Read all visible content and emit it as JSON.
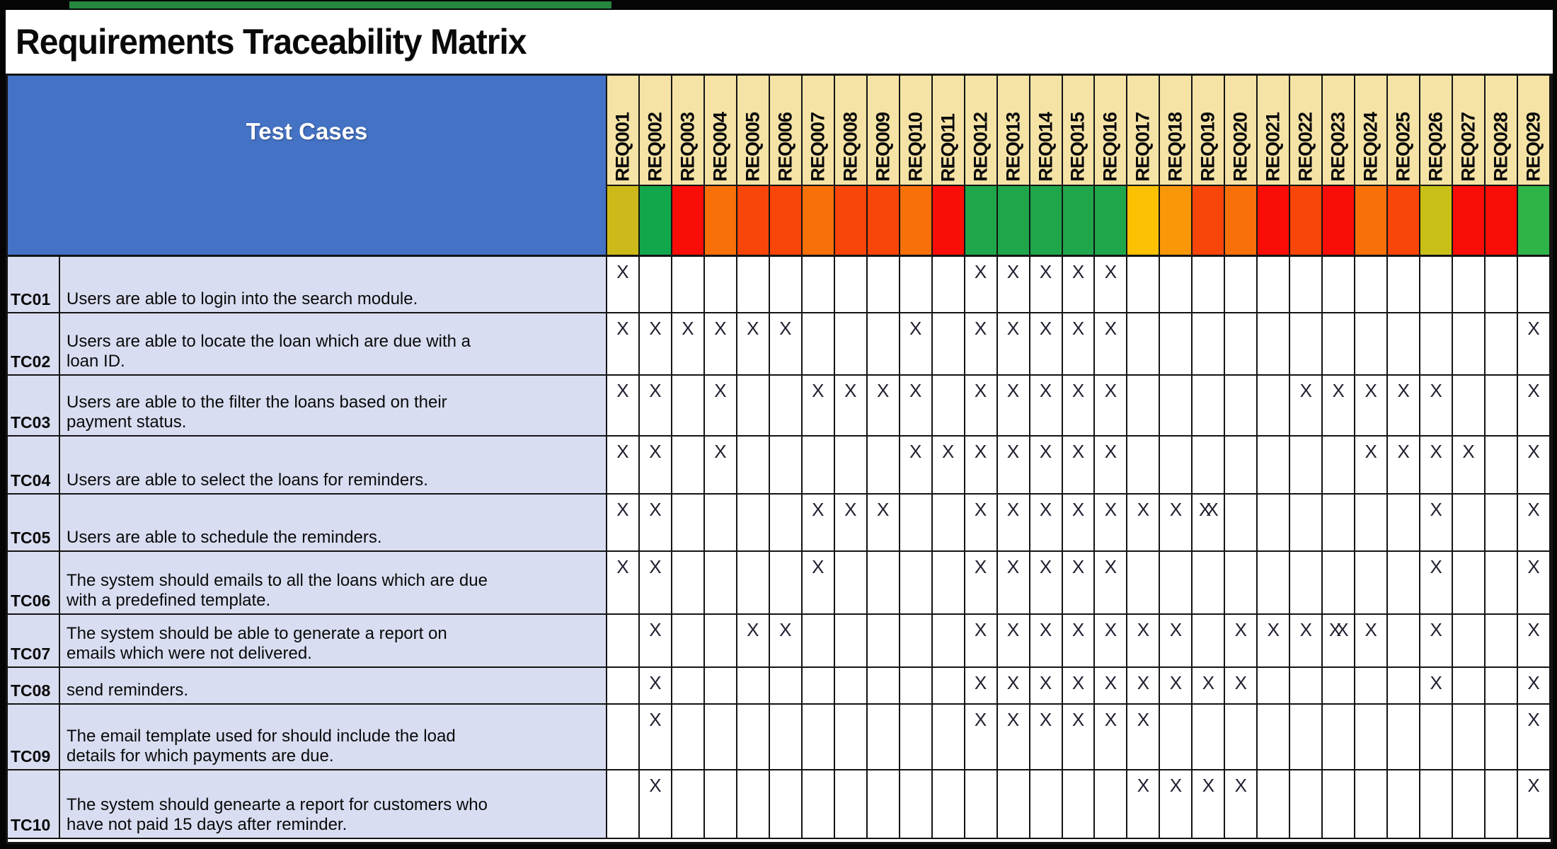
{
  "page": {
    "title": "Requirements Traceability Matrix",
    "top_strip_color": "#26873E"
  },
  "header": {
    "test_cases_label": "Test Cases",
    "blue_bg": "#4472C4",
    "label_bg": "#F5E3A6",
    "requirements": [
      {
        "id": "REQ001",
        "status_color": "#CDB91A"
      },
      {
        "id": "REQ002",
        "status_color": "#12A74C"
      },
      {
        "id": "REQ003",
        "status_color": "#F90D06"
      },
      {
        "id": "REQ004",
        "status_color": "#F8700A"
      },
      {
        "id": "REQ005",
        "status_color": "#F84509"
      },
      {
        "id": "REQ006",
        "status_color": "#F84509"
      },
      {
        "id": "REQ007",
        "status_color": "#F8700A"
      },
      {
        "id": "REQ008",
        "status_color": "#F84509"
      },
      {
        "id": "REQ009",
        "status_color": "#F84509"
      },
      {
        "id": "REQ010",
        "status_color": "#F8700A"
      },
      {
        "id": "REQ011",
        "status_color": "#F90D06"
      },
      {
        "id": "REQ012",
        "status_color": "#1FA64B"
      },
      {
        "id": "REQ013",
        "status_color": "#1FA64B"
      },
      {
        "id": "REQ014",
        "status_color": "#1FA64B"
      },
      {
        "id": "REQ015",
        "status_color": "#1FA64B"
      },
      {
        "id": "REQ016",
        "status_color": "#1FA64B"
      },
      {
        "id": "REQ017",
        "status_color": "#FBC102"
      },
      {
        "id": "REQ018",
        "status_color": "#F99708"
      },
      {
        "id": "REQ019",
        "status_color": "#F84509"
      },
      {
        "id": "REQ020",
        "status_color": "#F8700A"
      },
      {
        "id": "REQ021",
        "status_color": "#F90D06"
      },
      {
        "id": "REQ022",
        "status_color": "#F84509"
      },
      {
        "id": "REQ023",
        "status_color": "#F90D06"
      },
      {
        "id": "REQ024",
        "status_color": "#F8700A"
      },
      {
        "id": "REQ025",
        "status_color": "#F84509"
      },
      {
        "id": "REQ026",
        "status_color": "#C9C017"
      },
      {
        "id": "REQ027",
        "status_color": "#F90D06"
      },
      {
        "id": "REQ028",
        "status_color": "#F90D06"
      },
      {
        "id": "REQ029",
        "status_color": "#2FB44A"
      }
    ]
  },
  "matrix": {
    "row_bg": "#D9DDF1",
    "mark_glyph": "X",
    "double_mark_glyph": "XX",
    "rows": [
      {
        "id": "TC01",
        "description": "Users are able to login into the search module.",
        "marks": [
          "X",
          "",
          "",
          "",
          "",
          "",
          "",
          "",
          "",
          "",
          "",
          "X",
          "X",
          "X",
          "X",
          "X",
          "",
          "",
          "",
          "",
          "",
          "",
          "",
          "",
          "",
          "",
          "",
          "",
          ""
        ]
      },
      {
        "id": "TC02",
        "description": "Users are able to locate the loan which are due with a\nloan ID.",
        "marks": [
          "X",
          "X",
          "X",
          "X",
          "X",
          "X",
          "",
          "",
          "",
          "X",
          "",
          "X",
          "X",
          "X",
          "X",
          "X",
          "",
          "",
          "",
          "",
          "",
          "",
          "",
          "",
          "",
          "",
          "",
          "",
          "X"
        ]
      },
      {
        "id": "TC03",
        "description": "Users are able to the filter the loans based on their\npayment status.",
        "marks": [
          "X",
          "X",
          "",
          "X",
          "",
          "",
          "X",
          "X",
          "X",
          "X",
          "",
          "X",
          "X",
          "X",
          "X",
          "X",
          "",
          "",
          "",
          "",
          "",
          "X",
          "X",
          "X",
          "X",
          "X",
          "",
          "",
          "X"
        ]
      },
      {
        "id": "TC04",
        "description": "Users are able to select the loans for reminders.",
        "marks": [
          "X",
          "X",
          "",
          "X",
          "",
          "",
          "",
          "",
          "",
          "X",
          "X",
          "X",
          "X",
          "X",
          "X",
          "X",
          "",
          "",
          "",
          "",
          "",
          "",
          "",
          "X",
          "X",
          "X",
          "X",
          "",
          "X"
        ]
      },
      {
        "id": "TC05",
        "description": "Users are able to schedule the reminders.",
        "marks": [
          "X",
          "X",
          "",
          "",
          "",
          "",
          "X",
          "X",
          "X",
          "",
          "",
          "X",
          "X",
          "X",
          "X",
          "X",
          "X",
          "X",
          "XX",
          "",
          "",
          "",
          "",
          "",
          "",
          "X",
          "",
          "",
          "X"
        ]
      },
      {
        "id": "TC06",
        "description": "The system should emails to all the loans which are due\nwith a predefined template.",
        "marks": [
          "X",
          "X",
          "",
          "",
          "",
          "",
          "X",
          "",
          "",
          "",
          "",
          "X",
          "X",
          "X",
          "X",
          "X",
          "",
          "",
          "",
          "",
          "",
          "",
          "",
          "",
          "",
          "X",
          "",
          "",
          "X"
        ]
      },
      {
        "id": "TC07",
        "description": "The system should be able to generate a report on\nemails which were not delivered.",
        "marks": [
          "",
          "X",
          "",
          "",
          "X",
          "X",
          "",
          "",
          "",
          "",
          "",
          "X",
          "X",
          "X",
          "X",
          "X",
          "X",
          "X",
          "",
          "X",
          "X",
          "X",
          "XX",
          "X",
          "",
          "X",
          "",
          "",
          "X"
        ]
      },
      {
        "id": "TC08",
        "description": "send reminders.",
        "marks": [
          "",
          "X",
          "",
          "",
          "",
          "",
          "",
          "",
          "",
          "",
          "",
          "X",
          "X",
          "X",
          "X",
          "X",
          "X",
          "X",
          "X",
          "X",
          "",
          "",
          "",
          "",
          "",
          "X",
          "",
          "",
          "X"
        ]
      },
      {
        "id": "TC09",
        "description": "The email template used for should include the load\ndetails for which payments are due.",
        "marks": [
          "",
          "X",
          "",
          "",
          "",
          "",
          "",
          "",
          "",
          "",
          "",
          "X",
          "X",
          "X",
          "X",
          "X",
          "X",
          "",
          "",
          "",
          "",
          "",
          "",
          "",
          "",
          "",
          "",
          "",
          "X"
        ]
      },
      {
        "id": "TC10",
        "description": "The system should genearte a report for customers who\nhave not paid 15 days after reminder.",
        "marks": [
          "",
          "X",
          "",
          "",
          "",
          "",
          "",
          "",
          "",
          "",
          "",
          "",
          "",
          "",
          "",
          "",
          "X",
          "X",
          "X",
          "X",
          "",
          "",
          "",
          "",
          "",
          "",
          "",
          "",
          "X"
        ]
      }
    ]
  }
}
